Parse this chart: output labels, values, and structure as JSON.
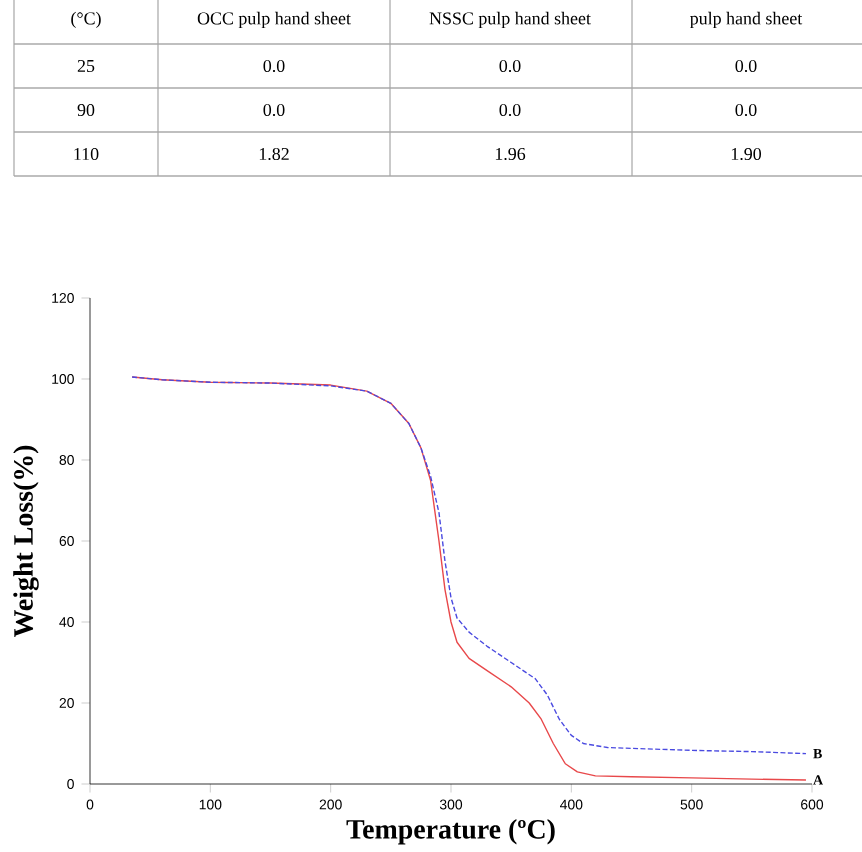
{
  "chart_data": [
    {
      "type": "other",
      "annotations": [
        "(°C)",
        "OCC pulp hand sheet",
        "NSSC pulp hand sheet",
        "pulp hand sheet",
        "25",
        "0.0",
        "0.0",
        "0.0",
        "90",
        "0.0",
        "0.0",
        "0.0",
        "110",
        "1.82",
        "1.96",
        "1.90"
      ]
    },
    {
      "type": "line",
      "xlabel": "Temperature (ºC)",
      "ylabel": "Weight Loss(%)",
      "xlim": [
        0,
        600
      ],
      "ylim": [
        0,
        120
      ],
      "xticks": [
        0,
        100,
        200,
        300,
        400,
        500,
        600
      ],
      "yticks": [
        0,
        20,
        40,
        60,
        80,
        100,
        120
      ],
      "grid": false,
      "legend": false,
      "series": [
        {
          "name": "A",
          "color": "#e8484a",
          "line_style": "solid",
          "x": [
            35,
            60,
            100,
            150,
            200,
            230,
            250,
            265,
            275,
            283,
            290,
            295,
            300,
            305,
            315,
            330,
            350,
            365,
            375,
            385,
            395,
            405,
            420,
            450,
            500,
            550,
            595
          ],
          "values": [
            100.5,
            99.8,
            99.2,
            99,
            98.5,
            97,
            94,
            89,
            83,
            75,
            60,
            48,
            40,
            35,
            31,
            28,
            24,
            20,
            16,
            10,
            5,
            3,
            2,
            1.8,
            1.5,
            1.2,
            1
          ]
        },
        {
          "name": "B",
          "color": "#4a4ae0",
          "line_style": "dashed",
          "x": [
            35,
            60,
            100,
            150,
            200,
            230,
            250,
            265,
            275,
            283,
            290,
            295,
            300,
            305,
            315,
            330,
            350,
            370,
            380,
            390,
            400,
            410,
            430,
            450,
            500,
            550,
            595
          ],
          "values": [
            100.5,
            99.8,
            99.2,
            99,
            98.3,
            97,
            94,
            89,
            83,
            76,
            67,
            55,
            46,
            41,
            37.5,
            34,
            30,
            26,
            22,
            16,
            12,
            10,
            9,
            8.8,
            8.3,
            8,
            7.5
          ]
        }
      ]
    }
  ]
}
